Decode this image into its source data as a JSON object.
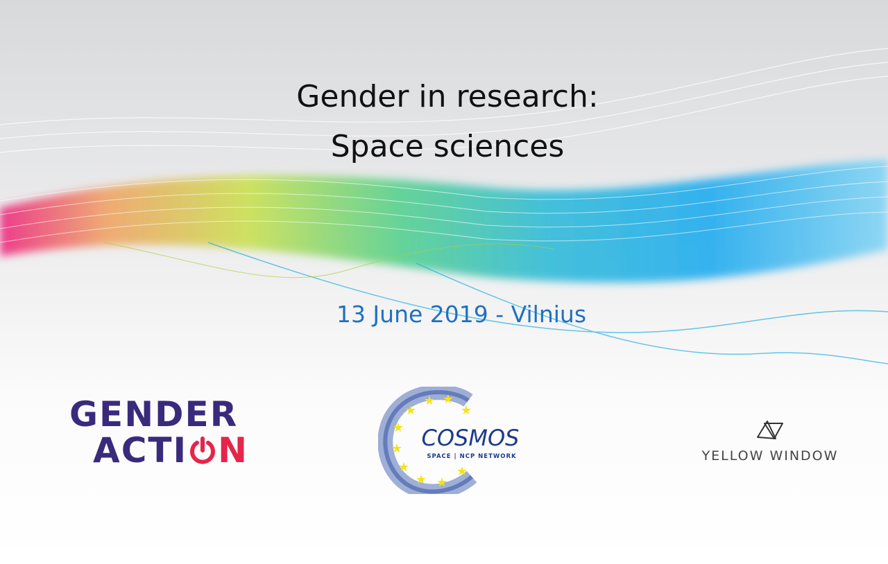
{
  "slide": {
    "title_line1": "Gender in research:",
    "title_line2": "Space sciences",
    "date_location": "13 June 2019 - Vilnius"
  },
  "logos": {
    "gender_action": {
      "line1": "GENDER",
      "line2_prefix": "ACTI",
      "line2_suffix": "N",
      "purple": "#3a2a7c",
      "red": "#e5254a"
    },
    "cosmos": {
      "name": "COSMOS",
      "tagline": "SPACE | NCP NETWORK",
      "blue": "#1e3a8a",
      "star_color": "#f5e316"
    },
    "yellow_window": {
      "name": "YELLOW WINDOW"
    }
  },
  "colors": {
    "title": "#111111",
    "date": "#1f70c1"
  }
}
